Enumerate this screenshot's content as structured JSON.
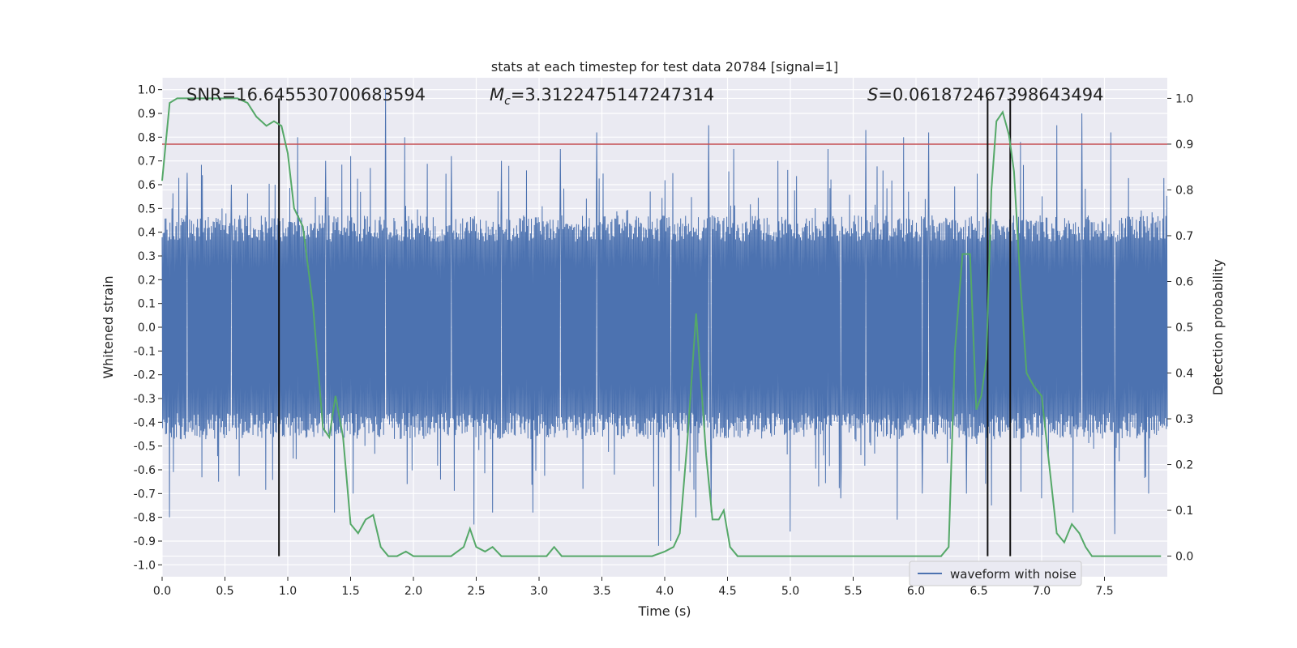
{
  "chart_data": {
    "type": "line",
    "title": "stats at each timestep for test data 20784 [signal=1]",
    "xlabel": "Time (s)",
    "ylabel_left": "Whitened strain",
    "ylabel_right": "Detection probability",
    "xlim": [
      0,
      8
    ],
    "ylim_left": [
      -1.05,
      1.05
    ],
    "ylim_right": [
      -0.045,
      1.045
    ],
    "x_ticks": [
      "0.0",
      "0.5",
      "1.0",
      "1.5",
      "2.0",
      "2.5",
      "3.0",
      "3.5",
      "4.0",
      "4.5",
      "5.0",
      "5.5",
      "6.0",
      "6.5",
      "7.0",
      "7.5"
    ],
    "y_left_ticks": [
      "-1.0",
      "-0.9",
      "-0.8",
      "-0.7",
      "-0.6",
      "-0.5",
      "-0.4",
      "-0.3",
      "-0.2",
      "-0.1",
      "0.0",
      "0.1",
      "0.2",
      "0.3",
      "0.4",
      "0.5",
      "0.6",
      "0.7",
      "0.8",
      "0.9",
      "1.0"
    ],
    "y_right_ticks": [
      "0.0",
      "0.1",
      "0.2",
      "0.3",
      "0.4",
      "0.5",
      "0.6",
      "0.7",
      "0.8",
      "0.9",
      "1.0"
    ],
    "annotations": {
      "snr": "SNR=16.645530700683594",
      "mc_symbol": "M",
      "mc_sub": "c",
      "mc_value": "=3.3122475147247314",
      "s_symbol": "S",
      "s_value": "=0.061872467398643494"
    },
    "legend": {
      "placement": "lower-right",
      "label": "waveform with noise"
    },
    "threshold": {
      "value": 0.9,
      "axis": "right",
      "color": "#c44e52"
    },
    "vertical_markers": [
      0.93,
      6.57,
      6.75
    ],
    "vertical_marker_range": [
      0.0,
      1.0
    ],
    "waveform": {
      "name": "waveform with noise",
      "color": "#4c72b0",
      "x_range": [
        0,
        8
      ],
      "samples": 2048,
      "core_amplitude": 0.36,
      "spikes_pos": [
        [
          0.08,
          0.5
        ],
        [
          0.2,
          0.65
        ],
        [
          0.55,
          0.6
        ],
        [
          0.9,
          0.6
        ],
        [
          1.08,
          0.8
        ],
        [
          1.5,
          0.72
        ],
        [
          1.78,
          1.0
        ],
        [
          1.93,
          0.8
        ],
        [
          2.3,
          0.72
        ],
        [
          2.7,
          0.7
        ],
        [
          3.17,
          0.75
        ],
        [
          3.46,
          0.82
        ],
        [
          3.95,
          0.75
        ],
        [
          4.35,
          0.85
        ],
        [
          4.55,
          0.75
        ],
        [
          5.0,
          0.8
        ],
        [
          5.3,
          0.75
        ],
        [
          5.6,
          0.83
        ],
        [
          5.9,
          0.8
        ],
        [
          6.1,
          0.82
        ],
        [
          6.6,
          0.82
        ],
        [
          6.83,
          0.78
        ],
        [
          7.12,
          0.85
        ],
        [
          7.32,
          0.9
        ],
        [
          7.55,
          0.82
        ],
        [
          7.85,
          0.8
        ],
        [
          6.4,
          0.7
        ],
        [
          2.9,
          0.66
        ],
        [
          4.9,
          0.7
        ],
        [
          1.3,
          0.7
        ]
      ],
      "spikes_neg": [
        [
          0.06,
          -0.8
        ],
        [
          0.45,
          -0.65
        ],
        [
          0.93,
          -0.6
        ],
        [
          1.37,
          -0.78
        ],
        [
          1.52,
          -0.7
        ],
        [
          2.48,
          -0.83
        ],
        [
          2.63,
          -0.78
        ],
        [
          2.95,
          -0.78
        ],
        [
          3.35,
          -0.68
        ],
        [
          3.95,
          -0.92
        ],
        [
          4.05,
          -0.9
        ],
        [
          4.25,
          -0.8
        ],
        [
          4.37,
          -0.78
        ],
        [
          5.0,
          -0.86
        ],
        [
          5.4,
          -0.72
        ],
        [
          5.85,
          -0.81
        ],
        [
          6.4,
          -0.7
        ],
        [
          6.6,
          -0.75
        ],
        [
          7.0,
          -0.72
        ],
        [
          7.58,
          -0.87
        ],
        [
          7.85,
          -0.7
        ],
        [
          1.95,
          -0.66
        ],
        [
          3.6,
          -0.62
        ],
        [
          6.05,
          -0.7
        ],
        [
          7.25,
          -0.78
        ]
      ]
    },
    "probability": {
      "name": "Detection probability",
      "color": "#55a868",
      "x": [
        0.0,
        0.06,
        0.12,
        0.2,
        0.3,
        0.4,
        0.5,
        0.6,
        0.68,
        0.75,
        0.83,
        0.89,
        0.95,
        1.0,
        1.05,
        1.12,
        1.2,
        1.28,
        1.33,
        1.38,
        1.44,
        1.5,
        1.56,
        1.62,
        1.68,
        1.74,
        1.8,
        1.87,
        1.94,
        2.0,
        2.1,
        2.2,
        2.3,
        2.4,
        2.45,
        2.5,
        2.57,
        2.63,
        2.7,
        2.78,
        2.85,
        2.92,
        3.0,
        3.06,
        3.12,
        3.18,
        3.25,
        3.4,
        3.6,
        3.75,
        3.9,
        4.0,
        4.07,
        4.12,
        4.18,
        4.25,
        4.33,
        4.38,
        4.43,
        4.47,
        4.52,
        4.58,
        4.65,
        4.8,
        5.0,
        5.2,
        5.5,
        5.8,
        6.0,
        6.1,
        6.2,
        6.26,
        6.31,
        6.37,
        6.43,
        6.48,
        6.52,
        6.56,
        6.6,
        6.64,
        6.69,
        6.74,
        6.78,
        6.83,
        6.88,
        6.94,
        7.0,
        7.06,
        7.12,
        7.18,
        7.24,
        7.3,
        7.35,
        7.4,
        7.48,
        7.55,
        7.62,
        7.68,
        7.75,
        7.85,
        7.95
      ],
      "y": [
        0.82,
        0.99,
        1.0,
        1.0,
        1.0,
        1.0,
        1.0,
        1.0,
        0.99,
        0.96,
        0.94,
        0.95,
        0.94,
        0.88,
        0.76,
        0.72,
        0.55,
        0.28,
        0.26,
        0.35,
        0.26,
        0.07,
        0.05,
        0.08,
        0.09,
        0.02,
        0.0,
        0.0,
        0.01,
        0.0,
        0.0,
        0.0,
        0.0,
        0.02,
        0.06,
        0.02,
        0.01,
        0.02,
        0.0,
        0.0,
        0.0,
        0.0,
        0.0,
        0.0,
        0.02,
        0.0,
        0.0,
        0.0,
        0.0,
        0.0,
        0.0,
        0.01,
        0.02,
        0.05,
        0.25,
        0.53,
        0.22,
        0.08,
        0.08,
        0.1,
        0.02,
        0.0,
        0.0,
        0.0,
        0.0,
        0.0,
        0.0,
        0.0,
        0.0,
        0.0,
        0.0,
        0.02,
        0.45,
        0.66,
        0.66,
        0.32,
        0.35,
        0.43,
        0.8,
        0.95,
        0.97,
        0.92,
        0.84,
        0.6,
        0.4,
        0.37,
        0.35,
        0.2,
        0.05,
        0.03,
        0.07,
        0.05,
        0.02,
        0.0,
        0.0,
        0.0,
        0.0,
        0.0,
        0.0,
        0.0,
        0.0
      ]
    }
  }
}
